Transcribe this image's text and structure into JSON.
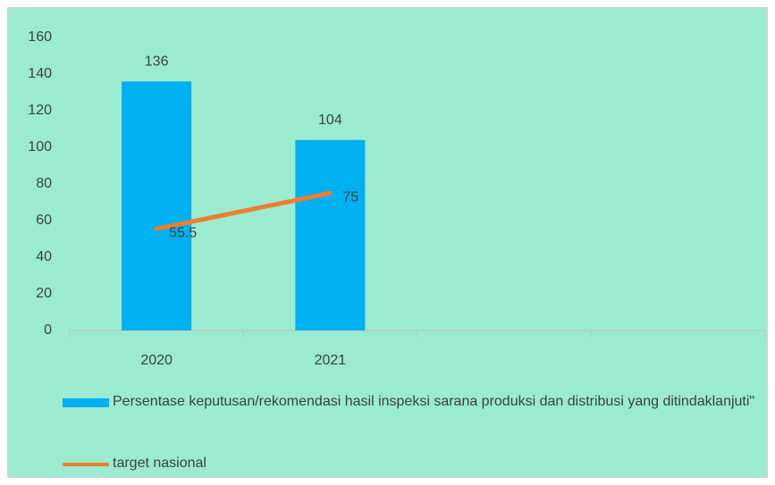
{
  "chart_data": {
    "type": "bar",
    "categories": [
      "2020",
      "2021",
      null,
      null
    ],
    "series": [
      {
        "name": "Persentase keputusan/rekomendasi hasil inspeksi sarana produksi dan distribusi yang ditindaklanjuti\"",
        "type": "bar",
        "color": "#00b0f0",
        "values": [
          136,
          104,
          null,
          null
        ]
      },
      {
        "name": "target nasional",
        "type": "line",
        "color": "#ed7d31",
        "values": [
          55.5,
          75,
          null,
          null
        ]
      }
    ],
    "ylim": [
      0,
      160
    ],
    "yticks": [
      0,
      20,
      40,
      60,
      80,
      100,
      120,
      140,
      160
    ],
    "grid": false,
    "legend": "bottom"
  }
}
